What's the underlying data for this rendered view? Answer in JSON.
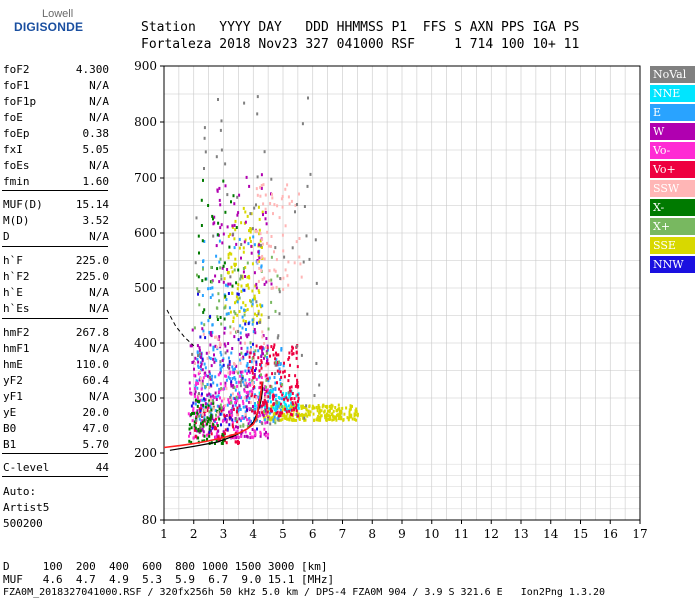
{
  "logo": {
    "top": "Lowell",
    "main": "DIGISONDE"
  },
  "header": {
    "line1": "Station   YYYY DAY   DDD HHMMSS P1  FFS S AXN PPS IGA PS",
    "line2": "Fortaleza 2018 Nov23 327 041000 RSF     1 714 100 10+ 11"
  },
  "params": [
    {
      "label": "foF2",
      "value": "4.300"
    },
    {
      "label": "foF1",
      "value": "N/A"
    },
    {
      "label": "foF1p",
      "value": "N/A"
    },
    {
      "label": "foE",
      "value": "N/A"
    },
    {
      "label": "foEp",
      "value": "0.38"
    },
    {
      "label": "fxI",
      "value": "5.05"
    },
    {
      "label": "foEs",
      "value": "N/A"
    },
    {
      "label": "fmin",
      "value": "1.60"
    },
    {
      "label": "MUF(D)",
      "value": "15.14"
    },
    {
      "label": "M(D)",
      "value": "3.52"
    },
    {
      "label": "D",
      "value": "N/A"
    },
    {
      "label": "h`F",
      "value": "225.0"
    },
    {
      "label": "h`F2",
      "value": "225.0"
    },
    {
      "label": "h`E",
      "value": "N/A"
    },
    {
      "label": "h`Es",
      "value": "N/A"
    },
    {
      "label": "hmF2",
      "value": "267.8"
    },
    {
      "label": "hmF1",
      "value": "N/A"
    },
    {
      "label": "hmE",
      "value": "110.0"
    },
    {
      "label": "yF2",
      "value": "60.4"
    },
    {
      "label": "yF1",
      "value": "N/A"
    },
    {
      "label": "yE",
      "value": "20.0"
    },
    {
      "label": "B0",
      "value": "47.0"
    },
    {
      "label": "B1",
      "value": "5.70"
    },
    {
      "label": "C-level",
      "value": "44"
    }
  ],
  "autoscale": {
    "line1": "Auto:",
    "line2": "Artist5",
    "line3": "500200"
  },
  "legend": [
    {
      "label": "NoVal",
      "color": "#808080",
      "text_color": "#ffffff"
    },
    {
      "label": "NNE",
      "color": "#00e5ff",
      "text_color": "#ffffff"
    },
    {
      "label": "E",
      "color": "#29a3ff",
      "text_color": "#ffffff"
    },
    {
      "label": "W",
      "color": "#b000b0",
      "text_color": "#ffffff"
    },
    {
      "label": "Vo-",
      "color": "#ff2ad4",
      "text_color": "#ffffff"
    },
    {
      "label": "Vo+",
      "color": "#ee0040",
      "text_color": "#ffffff"
    },
    {
      "label": "SSW",
      "color": "#ffb6b6",
      "text_color": "#ffffff"
    },
    {
      "label": "X-",
      "color": "#007a00",
      "text_color": "#ffffff"
    },
    {
      "label": "X+",
      "color": "#78b860",
      "text_color": "#ffffff"
    },
    {
      "label": "SSE",
      "color": "#d8d800",
      "text_color": "#ffffff"
    },
    {
      "label": "NNW",
      "color": "#1a10e0",
      "text_color": "#ffffff"
    }
  ],
  "footer": {
    "line1": "D     100  200  400  600  800 1000 1500 3000 [km]",
    "line2": "MUF   4.6  4.7  4.9  5.3  5.9  6.7  9.0 15.1 [MHz]",
    "line3": "FZA0M_2018327041000.RSF / 320fx256h 50 kHz 5.0 km / DPS-4 FZA0M 904 / 3.9 S 321.6 E   Ion2Png 1.3.20"
  },
  "chart_data": {
    "type": "scatter",
    "xlim": [
      1,
      17
    ],
    "ylim": [
      80,
      900
    ],
    "x_ticks": [
      1,
      2,
      3,
      4,
      5,
      6,
      7,
      8,
      9,
      10,
      11,
      12,
      13,
      14,
      15,
      16,
      17
    ],
    "y_ticks": [
      80,
      200,
      300,
      400,
      500,
      600,
      700,
      800,
      900
    ],
    "clusters": [
      {
        "series": "SSE",
        "x": [
          4.3,
          7.5
        ],
        "y": [
          262,
          290
        ],
        "n": 260
      },
      {
        "series": "SSE",
        "x": [
          3.0,
          4.3
        ],
        "y": [
          440,
          650
        ],
        "n": 110
      },
      {
        "series": "E",
        "x": [
          2.0,
          5.0
        ],
        "y": [
          260,
          400
        ],
        "n": 240
      },
      {
        "series": "E",
        "x": [
          2.2,
          4.3
        ],
        "y": [
          420,
          600
        ],
        "n": 60
      },
      {
        "series": "NNE",
        "x": [
          4.0,
          5.5
        ],
        "y": [
          280,
          320
        ],
        "n": 70
      },
      {
        "series": "W",
        "x": [
          1.8,
          4.5
        ],
        "y": [
          230,
          430
        ],
        "n": 220
      },
      {
        "series": "W",
        "x": [
          2.6,
          4.6
        ],
        "y": [
          500,
          720
        ],
        "n": 60
      },
      {
        "series": "Vo-",
        "x": [
          1.8,
          4.5
        ],
        "y": [
          230,
          350
        ],
        "n": 140
      },
      {
        "series": "Vo+",
        "x": [
          3.8,
          5.5
        ],
        "y": [
          270,
          400
        ],
        "n": 150
      },
      {
        "series": "Vo+",
        "x": [
          2.0,
          3.5
        ],
        "y": [
          220,
          290
        ],
        "n": 60
      },
      {
        "series": "X-",
        "x": [
          1.8,
          3.0
        ],
        "y": [
          220,
          300
        ],
        "n": 70
      },
      {
        "series": "X-",
        "x": [
          2.0,
          3.5
        ],
        "y": [
          440,
          700
        ],
        "n": 35
      },
      {
        "series": "X+",
        "x": [
          2.0,
          5.0
        ],
        "y": [
          250,
          560
        ],
        "n": 90
      },
      {
        "series": "SSW",
        "x": [
          4.0,
          5.6
        ],
        "y": [
          500,
          700
        ],
        "n": 70
      },
      {
        "series": "SSW",
        "x": [
          2.0,
          4.5
        ],
        "y": [
          270,
          430
        ],
        "n": 60
      },
      {
        "series": "NNW",
        "x": [
          1.9,
          4.1
        ],
        "y": [
          240,
          500
        ],
        "n": 40
      },
      {
        "series": "NoVal",
        "x": [
          1.8,
          6.2
        ],
        "y": [
          250,
          850
        ],
        "n": 90
      }
    ],
    "trace_curve": [
      [
        1.0,
        210
      ],
      [
        1.6,
        214
      ],
      [
        2.0,
        217
      ],
      [
        2.5,
        222
      ],
      [
        3.0,
        228
      ],
      [
        3.5,
        236
      ],
      [
        3.8,
        244
      ],
      [
        4.0,
        252
      ],
      [
        4.1,
        262
      ],
      [
        4.15,
        275
      ],
      [
        4.2,
        290
      ],
      [
        4.25,
        305
      ],
      [
        4.28,
        320
      ],
      [
        4.3,
        330
      ]
    ],
    "profile_curve": [
      [
        1.2,
        205
      ],
      [
        2.0,
        212
      ],
      [
        2.8,
        220
      ],
      [
        3.4,
        232
      ],
      [
        3.8,
        244
      ],
      [
        4.0,
        256
      ],
      [
        4.1,
        268
      ],
      [
        4.2,
        282
      ],
      [
        4.26,
        296
      ],
      [
        4.3,
        310
      ],
      [
        4.32,
        330
      ]
    ],
    "dashed_curve": [
      [
        1.1,
        460
      ],
      [
        1.4,
        430
      ],
      [
        1.7,
        410
      ],
      [
        2.0,
        395
      ]
    ]
  }
}
